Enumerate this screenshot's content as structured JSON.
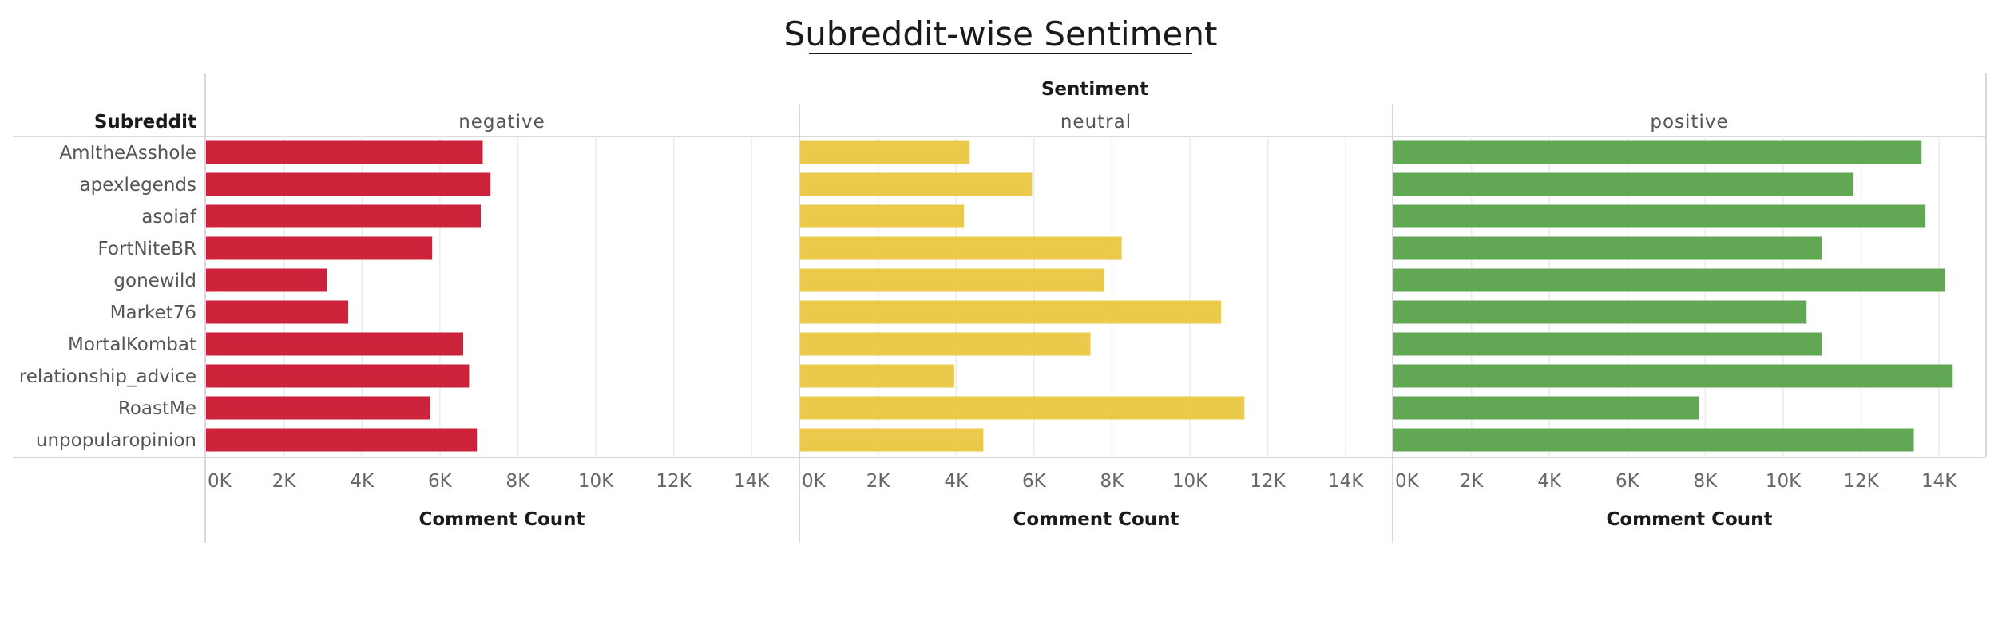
{
  "chart_data": {
    "type": "bar",
    "orientation": "horizontal",
    "title": "Subreddit-wise Sentiment",
    "row_header": "Subreddit",
    "column_header": "Sentiment",
    "xlabel": "Comment Count",
    "xlim": [
      0,
      15000
    ],
    "x_ticks": [
      0,
      2000,
      4000,
      6000,
      8000,
      10000,
      12000,
      14000
    ],
    "x_tick_labels": [
      "0K",
      "2K",
      "4K",
      "6K",
      "8K",
      "10K",
      "12K",
      "14K"
    ],
    "grid": true,
    "categories": [
      "AmItheAsshole",
      "apexlegends",
      "asoiaf",
      "FortNiteBR",
      "gonewild",
      "Market76",
      "MortalKombat",
      "relationship_advice",
      "RoastMe",
      "unpopularopinion"
    ],
    "series": [
      {
        "name": "negative",
        "color": "#cc233b",
        "values": [
          7100,
          7300,
          7050,
          5800,
          3100,
          3650,
          6600,
          6750,
          5750,
          6950
        ]
      },
      {
        "name": "neutral",
        "color": "#ebc94a",
        "values": [
          4350,
          5950,
          4200,
          8250,
          7800,
          10800,
          7450,
          3950,
          11400,
          4700
        ]
      },
      {
        "name": "positive",
        "color": "#62a854",
        "values": [
          13550,
          11800,
          13650,
          11000,
          14150,
          10600,
          11000,
          14350,
          7850,
          13350
        ]
      }
    ]
  }
}
